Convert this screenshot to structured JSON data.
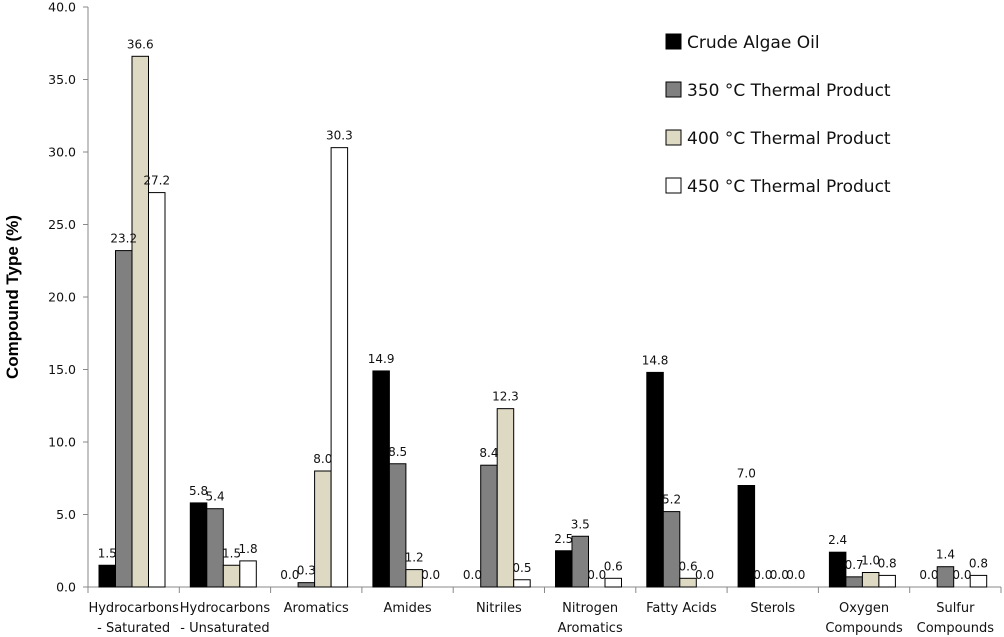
{
  "chart_data": {
    "type": "bar",
    "ylabel": "Compound Type (%)",
    "ylim": [
      0,
      40
    ],
    "yticks": [
      "0.0",
      "5.0",
      "10.0",
      "15.0",
      "20.0",
      "25.0",
      "30.0",
      "35.0",
      "40.0"
    ],
    "legend_position": "top-right",
    "grid": false,
    "categories": [
      [
        "Hydrocarbons",
        "- Saturated"
      ],
      [
        "Hydrocarbons",
        "- Unsaturated"
      ],
      [
        "Aromatics"
      ],
      [
        "Amides"
      ],
      [
        "Nitriles"
      ],
      [
        "Nitrogen",
        "Aromatics"
      ],
      [
        "Fatty Acids"
      ],
      [
        "Sterols"
      ],
      [
        "Oxygen",
        "Compounds"
      ],
      [
        "Sulfur",
        "Compounds"
      ]
    ],
    "series": [
      {
        "name": "Crude Algae Oil",
        "color": "#000000",
        "values": [
          1.5,
          5.8,
          0.0,
          14.9,
          0.0,
          2.5,
          14.8,
          7.0,
          2.4,
          0.0
        ]
      },
      {
        "name": "350 °C Thermal Product",
        "color": "#808080",
        "values": [
          23.2,
          5.4,
          0.3,
          8.5,
          8.4,
          3.5,
          5.2,
          0.0,
          0.7,
          1.4
        ]
      },
      {
        "name": "400 °C Thermal Product",
        "color": "#ddd9c3",
        "values": [
          36.6,
          1.5,
          8.0,
          1.2,
          12.3,
          0.0,
          0.6,
          0.0,
          1.0,
          0.0
        ]
      },
      {
        "name": "450 °C Thermal Product",
        "color": "#ffffff",
        "values": [
          27.2,
          1.8,
          30.3,
          0.0,
          0.5,
          0.6,
          0.0,
          0.0,
          0.8,
          0.8
        ]
      }
    ],
    "data_labels": [
      [
        "1.5",
        "5.8",
        "0.0",
        "14.9",
        "0.0",
        "2.5",
        "14.8",
        "7.0",
        "2.4",
        "0.0"
      ],
      [
        "23.2",
        "5.4",
        "0.3",
        "8.5",
        "8.4",
        "3.5",
        "5.2",
        "0.0",
        "0.7",
        "1.4"
      ],
      [
        "36.6",
        "1.5",
        "8.0",
        "1.2",
        "12.3",
        "0.0",
        "0.6",
        "0.0",
        "1.0",
        "0.0"
      ],
      [
        "27.2",
        "1.8",
        "30.3",
        "0.0",
        "0.5",
        "0.6",
        "0.0",
        "0.0",
        "0.8",
        "0.8"
      ]
    ]
  }
}
